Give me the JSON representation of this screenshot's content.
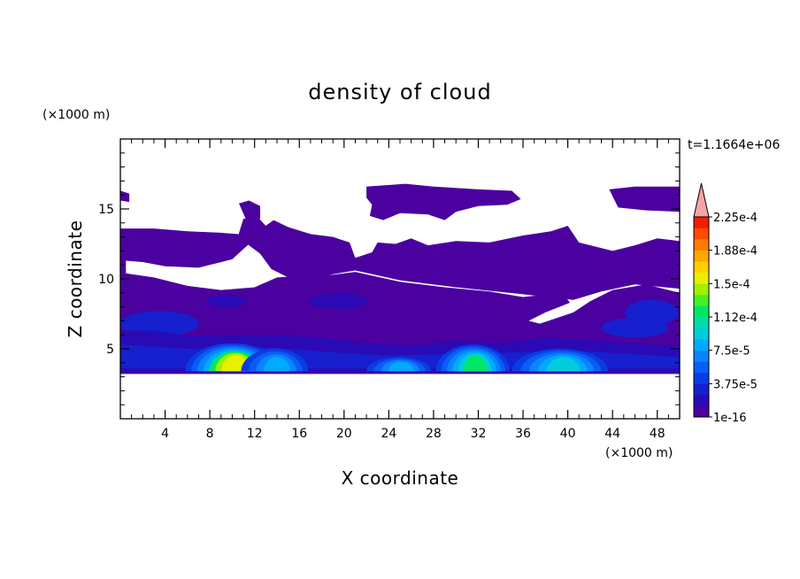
{
  "chart_data": {
    "type": "heatmap",
    "title": "density of cloud",
    "xlabel": "X coordinate",
    "ylabel": "Z coordinate",
    "x_unit": "(×1000 m)",
    "y_unit": "(×1000 m)",
    "time_label": "t=1.1664e+06",
    "xlim": [
      0,
      50
    ],
    "ylim": [
      0,
      20
    ],
    "x_ticks": [
      4,
      8,
      12,
      16,
      20,
      24,
      28,
      32,
      36,
      40,
      44,
      48
    ],
    "x_tick_labels": [
      "4",
      "8",
      "12",
      "16",
      "20",
      "24",
      "28",
      "32",
      "36",
      "40",
      "44",
      "48"
    ],
    "y_ticks": [
      5,
      10,
      15
    ],
    "y_tick_labels": [
      "5",
      "10",
      "15"
    ],
    "colorbar": {
      "levels": [
        "1e-16",
        "3.75e-5",
        "7.5e-5",
        "1.12e-4",
        "1.5e-4",
        "1.88e-4",
        "2.25e-4"
      ],
      "colors": [
        "#4b00a0",
        "#2a0ab4",
        "#1620cf",
        "#0a3ce6",
        "#0a5ef5",
        "#0a84ff",
        "#00aaff",
        "#00cddc",
        "#00dcaa",
        "#00e664",
        "#46ef28",
        "#a0f000",
        "#e6f000",
        "#ffd000",
        "#ffa800",
        "#ff7a00",
        "#ff4a00",
        "#f01e00",
        "#f5a3a3"
      ],
      "extend": "max"
    },
    "grid": false
  }
}
